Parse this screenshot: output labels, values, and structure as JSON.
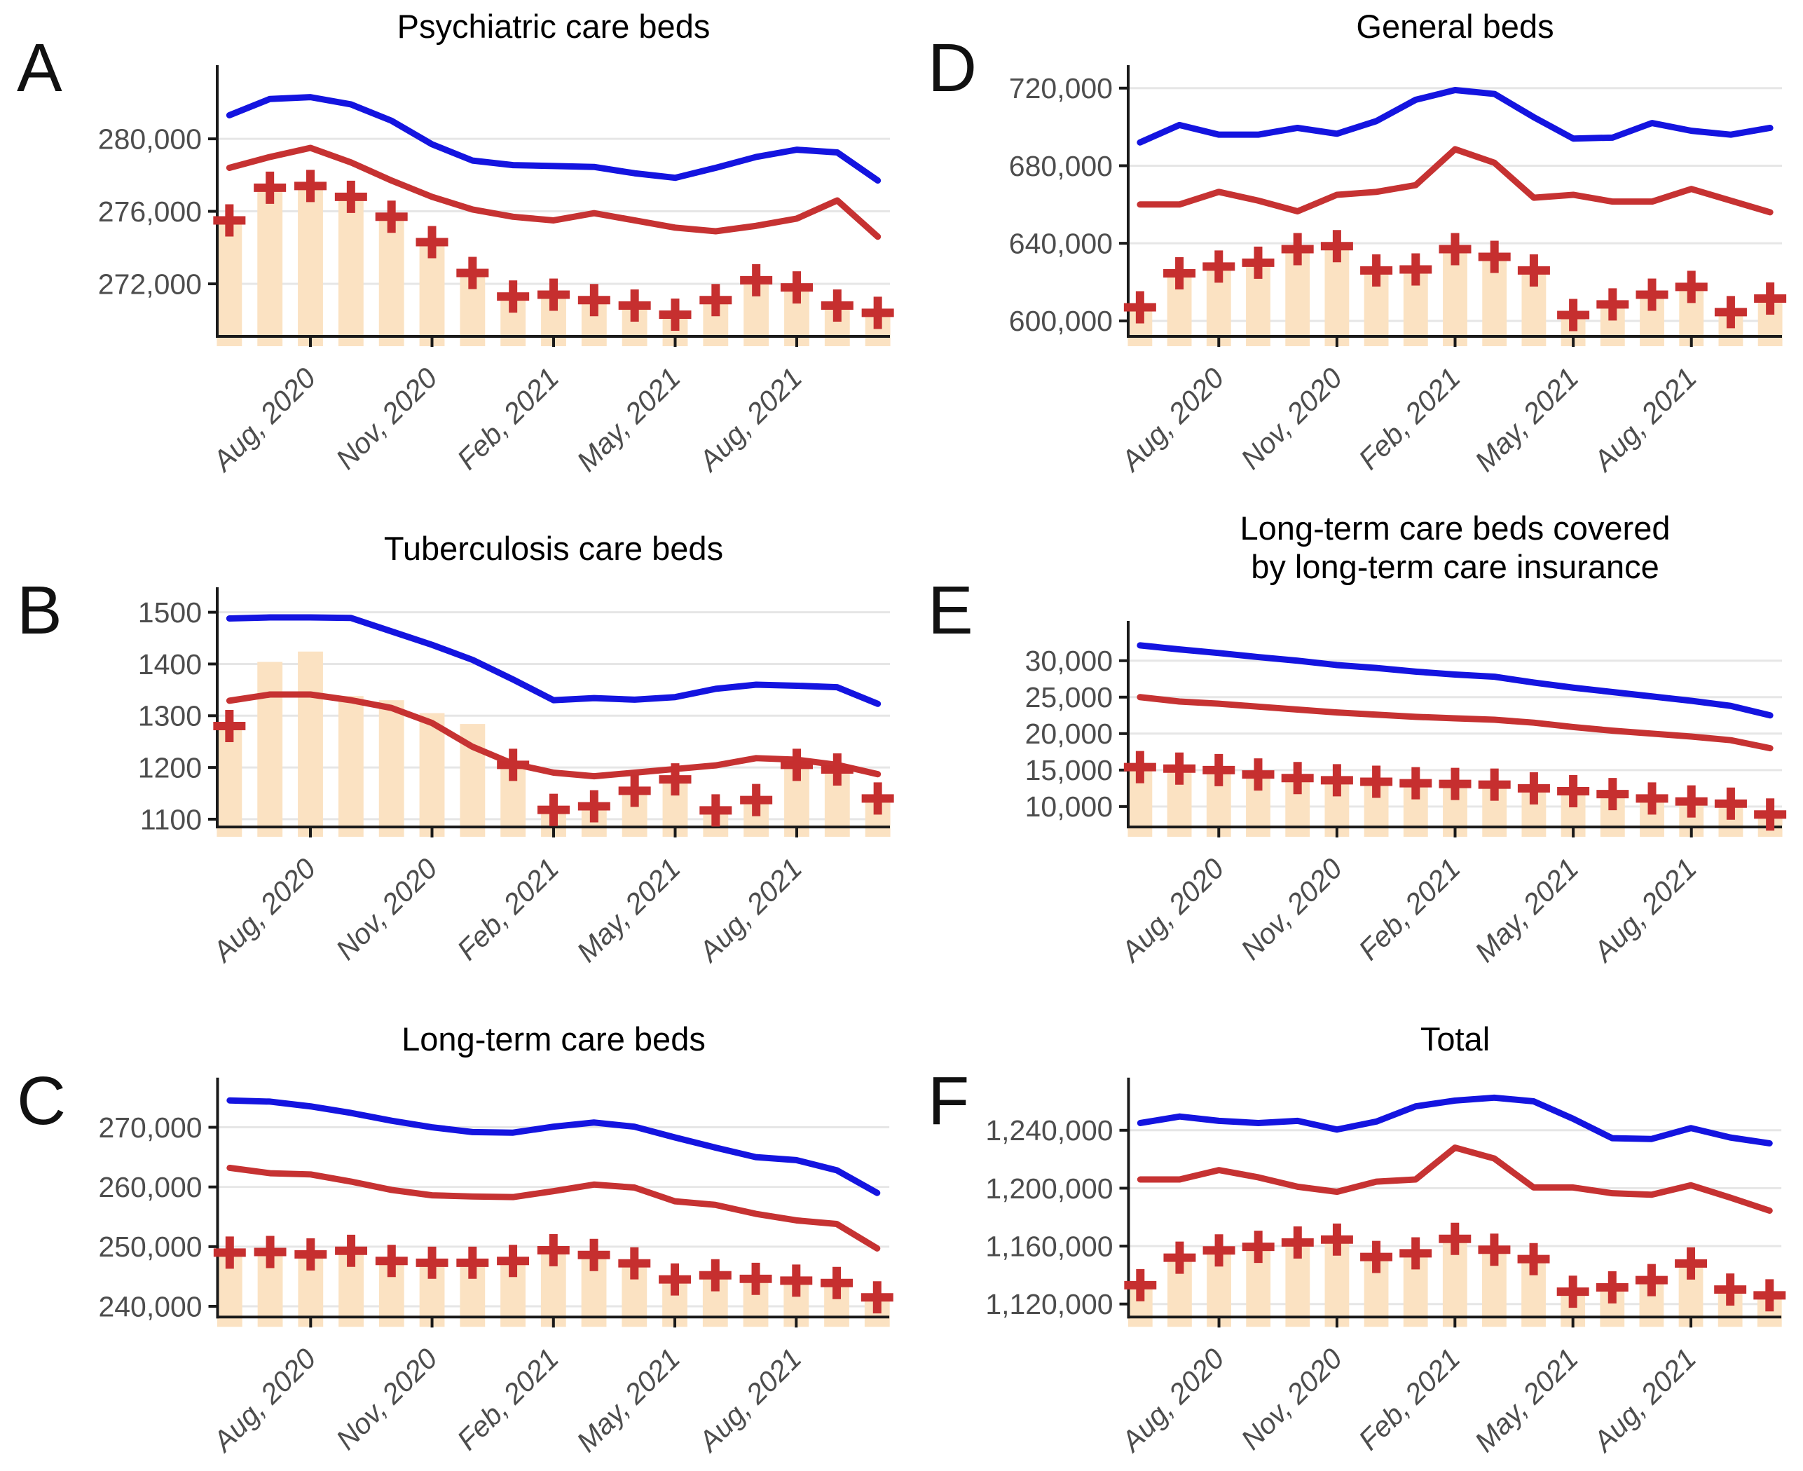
{
  "figure": {
    "background": "#ffffff",
    "colors": {
      "blue_line": "#1414e0",
      "red_line": "#c63232",
      "bar_fill": "#fbe2c2",
      "plus_marker": "#c62f2f",
      "grid": "#e6e6e6",
      "axis": "#1a1a1a",
      "tick_text": "#4d4d4d",
      "title_text": "#000000"
    },
    "x_axis": {
      "n_points": 17,
      "tick_positions": [
        3,
        6,
        9,
        12,
        15
      ],
      "tick_labels": [
        "Aug, 2020",
        "Nov, 2020",
        "Feb, 2021",
        "May, 2021",
        "Aug, 2021"
      ]
    }
  },
  "chart_data": [
    {
      "panel_label": "A",
      "type": "bar+line",
      "title_lines": [
        "Psychiatric care beds"
      ],
      "ylim": [
        269100,
        283600
      ],
      "y_ticks": {
        "labels": [
          "272,000",
          "276,000",
          "280,000"
        ],
        "values": [
          272000,
          276000,
          280000
        ]
      },
      "x_tick_positions": [
        3,
        6,
        9,
        12,
        15
      ],
      "x_tick_labels": [
        "Aug, 2020",
        "Nov, 2020",
        "Feb, 2021",
        "May, 2021",
        "Aug, 2021"
      ],
      "series": [
        {
          "name": "blue_line",
          "type": "line",
          "color": "#1414e0",
          "values": [
            281300,
            282200,
            282300,
            281900,
            281000,
            279700,
            278800,
            278550,
            278500,
            278450,
            278100,
            277850,
            278400,
            279000,
            279400,
            279250,
            277700
          ]
        },
        {
          "name": "red_line",
          "type": "line",
          "color": "#c63232",
          "values": [
            278400,
            279000,
            279500,
            278700,
            277700,
            276800,
            276100,
            275700,
            275500,
            275900,
            275500,
            275100,
            274900,
            275200,
            275600,
            276600,
            274600
          ]
        },
        {
          "name": "bars",
          "type": "bar",
          "color": "#fbe2c2",
          "values": [
            275500,
            277300,
            277400,
            276800,
            275700,
            274300,
            272600,
            271300,
            271400,
            271100,
            270800,
            270300,
            271100,
            272200,
            271800,
            270800,
            270400
          ]
        },
        {
          "name": "plus_markers",
          "type": "plus",
          "color": "#c62f2f",
          "values": [
            275500,
            277300,
            277400,
            276800,
            275700,
            274300,
            272600,
            271300,
            271400,
            271100,
            270800,
            270300,
            271100,
            272200,
            271800,
            270800,
            270400
          ]
        }
      ]
    },
    {
      "panel_label": "B",
      "type": "bar+line",
      "title_lines": [
        "Tuberculosis care beds"
      ],
      "ylim": [
        1085,
        1532
      ],
      "y_ticks": {
        "labels": [
          "1100",
          "1200",
          "1300",
          "1400",
          "1500"
        ],
        "values": [
          1100,
          1200,
          1300,
          1400,
          1500
        ]
      },
      "x_tick_positions": [
        3,
        6,
        9,
        12,
        15
      ],
      "x_tick_labels": [
        "Aug, 2020",
        "Nov, 2020",
        "Feb, 2021",
        "May, 2021",
        "Aug, 2021"
      ],
      "series": [
        {
          "name": "blue_line",
          "type": "line",
          "color": "#1414e0",
          "values": [
            1488,
            1490,
            1490,
            1489,
            1463,
            1437,
            1408,
            1370,
            1330,
            1334,
            1331,
            1336,
            1352,
            1360,
            1358,
            1355,
            1323
          ]
        },
        {
          "name": "red_line",
          "type": "line",
          "color": "#c63232",
          "values": [
            1329,
            1341,
            1341,
            1330,
            1315,
            1286,
            1240,
            1207,
            1190,
            1183,
            1190,
            1197,
            1204,
            1218,
            1215,
            1205,
            1187
          ]
        },
        {
          "name": "bars",
          "type": "bar",
          "color": "#fbe2c2",
          "values": [
            1280,
            1404,
            1424,
            1338,
            1330,
            1305,
            1284,
            1205,
            1118,
            1125,
            1155,
            1177,
            1117,
            1137,
            1205,
            1196,
            1140
          ]
        },
        {
          "name": "plus_markers",
          "type": "plus",
          "color": "#c62f2f",
          "values": [
            1280,
            null,
            null,
            null,
            null,
            null,
            null,
            1205,
            1118,
            1125,
            1155,
            1177,
            1117,
            1137,
            1205,
            1196,
            1140
          ]
        }
      ]
    },
    {
      "panel_label": "C",
      "type": "bar+line",
      "title_lines": [
        "Long-term care beds"
      ],
      "ylim": [
        238200,
        276900
      ],
      "y_ticks": {
        "labels": [
          "240,000",
          "250,000",
          "260,000",
          "270,000"
        ],
        "values": [
          240000,
          250000,
          260000,
          270000
        ]
      },
      "x_tick_positions": [
        3,
        6,
        9,
        12,
        15
      ],
      "x_tick_labels": [
        "Aug, 2020",
        "Nov, 2020",
        "Feb, 2021",
        "May, 2021",
        "Aug, 2021"
      ],
      "series": [
        {
          "name": "blue_line",
          "type": "line",
          "color": "#1414e0",
          "values": [
            274500,
            274300,
            273500,
            272400,
            271100,
            270000,
            269200,
            269100,
            270100,
            270800,
            270100,
            268300,
            266600,
            265000,
            264500,
            262800,
            259000
          ]
        },
        {
          "name": "red_line",
          "type": "line",
          "color": "#c63232",
          "values": [
            263200,
            262300,
            262100,
            260900,
            259500,
            258600,
            258400,
            258300,
            259300,
            260400,
            259900,
            257600,
            257000,
            255500,
            254400,
            253800,
            249700
          ]
        },
        {
          "name": "bars",
          "type": "bar",
          "color": "#fbe2c2",
          "values": [
            249000,
            249100,
            248700,
            249300,
            247600,
            247300,
            247300,
            247600,
            249400,
            248600,
            247200,
            244500,
            245200,
            244600,
            244300,
            243900,
            241500
          ]
        },
        {
          "name": "plus_markers",
          "type": "plus",
          "color": "#c62f2f",
          "values": [
            249000,
            249100,
            248700,
            249300,
            247600,
            247300,
            247300,
            247600,
            249400,
            248600,
            247200,
            244500,
            245200,
            244600,
            244300,
            243900,
            241500
          ]
        }
      ]
    },
    {
      "panel_label": "D",
      "type": "bar+line",
      "title_lines": [
        "General beds"
      ],
      "ylim": [
        592000,
        727500
      ],
      "y_ticks": {
        "labels": [
          "600,000",
          "640,000",
          "680,000",
          "720,000"
        ],
        "values": [
          600000,
          640000,
          680000,
          720000
        ]
      },
      "x_tick_positions": [
        3,
        6,
        9,
        12,
        15
      ],
      "x_tick_labels": [
        "Aug, 2020",
        "Nov, 2020",
        "Feb, 2021",
        "May, 2021",
        "Aug, 2021"
      ],
      "series": [
        {
          "name": "blue_line",
          "type": "line",
          "color": "#1414e0",
          "values": [
            692000,
            701000,
            696000,
            696000,
            699500,
            696500,
            703000,
            714000,
            719000,
            717000,
            705000,
            694000,
            694500,
            702000,
            698000,
            696000,
            699500
          ]
        },
        {
          "name": "red_line",
          "type": "line",
          "color": "#c63232",
          "values": [
            660000,
            660000,
            666500,
            662000,
            656500,
            665000,
            666500,
            670000,
            688500,
            681500,
            663500,
            665000,
            661500,
            661500,
            668000,
            662000,
            656000
          ]
        },
        {
          "name": "bars",
          "type": "bar",
          "color": "#fbe2c2",
          "values": [
            607000,
            624500,
            628000,
            630000,
            637000,
            638500,
            626000,
            626500,
            637000,
            633000,
            626000,
            603000,
            608500,
            613500,
            617500,
            604500,
            611500
          ]
        },
        {
          "name": "plus_markers",
          "type": "plus",
          "color": "#c62f2f",
          "values": [
            607000,
            624500,
            628000,
            630000,
            637000,
            638500,
            626000,
            626500,
            637000,
            633000,
            626000,
            603000,
            608500,
            613500,
            617500,
            604500,
            611500
          ]
        }
      ]
    },
    {
      "panel_label": "E",
      "type": "bar+line",
      "title_lines": [
        "Long-term care beds covered",
        "by long-term care insurance"
      ],
      "ylim": [
        7200,
        34300
      ],
      "y_ticks": {
        "labels": [
          "10,000",
          "15,000",
          "20,000",
          "25,000",
          "30,000"
        ],
        "values": [
          10000,
          15000,
          20000,
          25000,
          30000
        ]
      },
      "x_tick_positions": [
        3,
        6,
        9,
        12,
        15
      ],
      "x_tick_labels": [
        "Aug, 2020",
        "Nov, 2020",
        "Feb, 2021",
        "May, 2021",
        "Aug, 2021"
      ],
      "series": [
        {
          "name": "blue_line",
          "type": "line",
          "color": "#1414e0",
          "values": [
            32100,
            31550,
            31050,
            30500,
            30000,
            29400,
            29000,
            28500,
            28100,
            27800,
            27000,
            26300,
            25700,
            25100,
            24500,
            23800,
            22500
          ]
        },
        {
          "name": "red_line",
          "type": "line",
          "color": "#c63232",
          "values": [
            25000,
            24400,
            24100,
            23700,
            23300,
            22900,
            22600,
            22300,
            22100,
            21900,
            21500,
            20900,
            20400,
            20000,
            19600,
            19100,
            18000
          ]
        },
        {
          "name": "bars",
          "type": "bar",
          "color": "#fbe2c2",
          "values": [
            15400,
            15200,
            15000,
            14400,
            13900,
            13600,
            13400,
            13200,
            13100,
            13000,
            12500,
            12100,
            11700,
            11100,
            10700,
            10400,
            8900
          ]
        },
        {
          "name": "plus_markers",
          "type": "plus",
          "color": "#c62f2f",
          "values": [
            15400,
            15200,
            15000,
            14400,
            13900,
            13600,
            13400,
            13200,
            13100,
            13000,
            12500,
            12100,
            11700,
            11100,
            10700,
            10400,
            8900
          ]
        }
      ]
    },
    {
      "panel_label": "F",
      "type": "bar+line",
      "title_lines": [
        "Total"
      ],
      "ylim": [
        1111000,
        1270500
      ],
      "y_ticks": {
        "labels": [
          "1,120,000",
          "1,160,000",
          "1,200,000",
          "1,240,000"
        ],
        "values": [
          1120000,
          1160000,
          1200000,
          1240000
        ]
      },
      "x_tick_positions": [
        3,
        6,
        9,
        12,
        15
      ],
      "x_tick_labels": [
        "Aug, 2020",
        "Nov, 2020",
        "Feb, 2021",
        "May, 2021",
        "Aug, 2021"
      ],
      "series": [
        {
          "name": "blue_line",
          "type": "line",
          "color": "#1414e0",
          "values": [
            1245000,
            1249500,
            1246500,
            1245000,
            1246500,
            1240500,
            1246000,
            1256500,
            1260500,
            1262500,
            1260000,
            1248000,
            1234500,
            1234000,
            1241500,
            1235000,
            1231000
          ]
        },
        {
          "name": "red_line",
          "type": "line",
          "color": "#c63232",
          "values": [
            1206000,
            1206000,
            1212500,
            1207500,
            1201000,
            1197500,
            1204500,
            1206000,
            1228000,
            1220500,
            1200500,
            1200500,
            1196500,
            1195500,
            1202000,
            1193500,
            1184500
          ]
        },
        {
          "name": "bars",
          "type": "bar",
          "color": "#fbe2c2",
          "values": [
            1133000,
            1152000,
            1157000,
            1159500,
            1162500,
            1164500,
            1152500,
            1155000,
            1165000,
            1157500,
            1151000,
            1128500,
            1131500,
            1136500,
            1148000,
            1130000,
            1126000
          ]
        },
        {
          "name": "plus_markers",
          "type": "plus",
          "color": "#c62f2f",
          "values": [
            1133000,
            1152000,
            1157000,
            1159500,
            1162500,
            1164500,
            1152500,
            1155000,
            1165000,
            1157500,
            1151000,
            1128500,
            1131500,
            1136500,
            1148000,
            1130000,
            1126000
          ]
        }
      ]
    }
  ]
}
